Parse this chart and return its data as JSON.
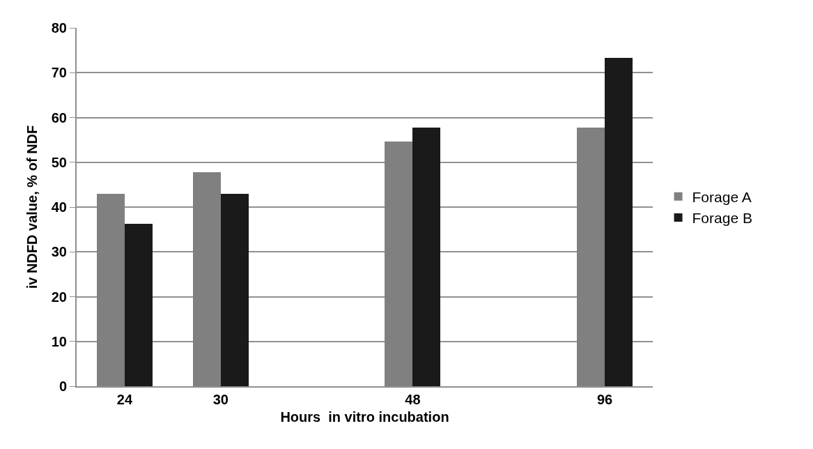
{
  "chart_data": {
    "type": "bar",
    "xlabel": "Hours  in vitro incubation",
    "ylabel": "iv NDFD value, % of NDF",
    "categories": [
      "24",
      "30",
      null,
      "48",
      null,
      "96"
    ],
    "series": [
      {
        "name": "Forage A",
        "color": "#808080",
        "values": [
          43,
          47.8,
          null,
          54.7,
          null,
          57.7
        ]
      },
      {
        "name": "Forage B",
        "color": "#1a1a1a",
        "values": [
          36.3,
          43,
          null,
          57.7,
          null,
          73.3
        ]
      }
    ],
    "ylim": [
      0,
      80
    ],
    "yticks": [
      0,
      10,
      20,
      30,
      40,
      50,
      60,
      70,
      80
    ],
    "grid": "y",
    "legend": "right"
  }
}
